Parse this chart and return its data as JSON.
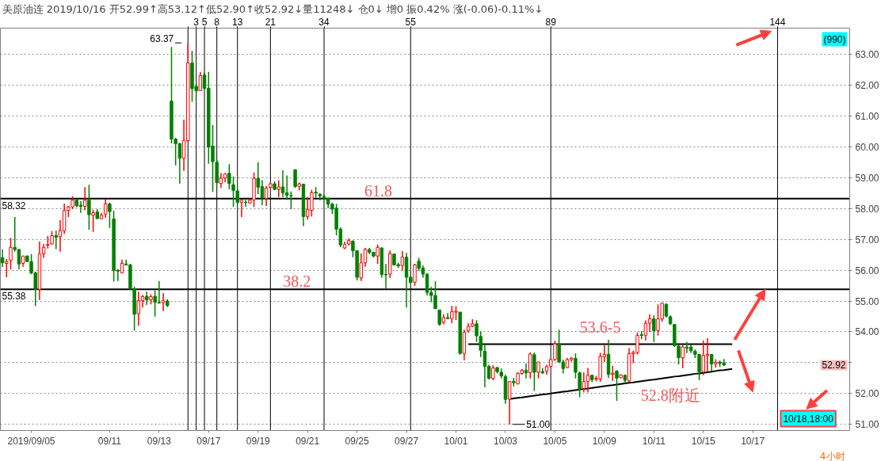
{
  "chart_data": {
    "type": "candlestick",
    "title": "美原油连 2019/10/16 开52.99↑高53.12↑低52.90↑收52.92↓量11248↓ 仓0↓ 增0 振0.42% 涨(-0.06)-0.11%↓",
    "categories": [
      null,
      null,
      null,
      null,
      null,
      null,
      null,
      "2019/09/05",
      null,
      null,
      null,
      null,
      null,
      null,
      null,
      null,
      null,
      null,
      null,
      null,
      null,
      null,
      null,
      null,
      null,
      null,
      "09/11",
      null,
      null,
      null,
      null,
      null,
      null,
      null,
      null,
      null,
      null,
      null,
      "09/13",
      null,
      null,
      null,
      null,
      null,
      null,
      null,
      null,
      null,
      null,
      null,
      "09/17",
      null,
      null,
      null,
      null,
      null,
      null,
      null,
      null,
      null,
      null,
      null,
      "09/19",
      null,
      null,
      null,
      null,
      null,
      null,
      null,
      null,
      null,
      null,
      null,
      "09/21",
      null,
      null,
      null,
      null,
      null,
      null,
      null,
      null,
      null,
      null,
      null,
      "09/25",
      null,
      null,
      null,
      null,
      null,
      null,
      null,
      null,
      null,
      null,
      null,
      "09/27",
      null,
      null,
      null,
      null,
      null,
      null,
      null,
      null,
      null,
      null,
      null,
      "10/01",
      null,
      null,
      null,
      null,
      null,
      null,
      null,
      null,
      null,
      null,
      null,
      "10/03",
      null,
      null,
      null,
      null,
      null,
      null,
      null,
      null,
      null,
      null,
      null,
      "10/05",
      null,
      null,
      null,
      null,
      null,
      null,
      null,
      null,
      null,
      null,
      null,
      "10/09",
      null,
      null,
      null,
      null,
      null,
      null,
      null,
      null,
      null,
      null,
      null,
      "10/11",
      null,
      null,
      null,
      null,
      null,
      null,
      null,
      null,
      null,
      null,
      null,
      "10/15",
      null,
      null,
      null,
      null,
      null,
      null,
      null,
      null,
      null,
      null,
      null,
      "10/17",
      null,
      null,
      null,
      null,
      null,
      null,
      null,
      null,
      null,
      null,
      null,
      null,
      null,
      null,
      null,
      null,
      null,
      null,
      null,
      null,
      null,
      null,
      null
    ],
    "ohlc": [
      [
        56.4,
        56.67,
        56.1,
        56.24
      ],
      [
        56.22,
        56.37,
        55.77,
        56.28
      ],
      [
        56.32,
        57.05,
        56.02,
        56.74
      ],
      [
        56.74,
        57.72,
        56.6,
        56.67
      ],
      [
        56.67,
        56.68,
        56.03,
        56.2
      ],
      [
        56.22,
        56.46,
        56.11,
        56.46
      ],
      [
        56.46,
        56.48,
        56.26,
        56.28
      ],
      [
        56.28,
        56.52,
        55.87,
        55.91
      ],
      [
        55.91,
        55.95,
        54.84,
        55.38
      ],
      [
        55.38,
        56.93,
        55.03,
        56.52
      ],
      [
        56.54,
        56.85,
        56.4,
        56.74
      ],
      [
        56.81,
        57.11,
        56.7,
        56.83
      ],
      [
        56.85,
        57.27,
        56.83,
        57.12
      ],
      [
        57.12,
        57.28,
        56.68,
        57.07
      ],
      [
        57.09,
        57.62,
        56.6,
        57.28
      ],
      [
        57.28,
        58.16,
        57.17,
        57.93
      ],
      [
        57.94,
        58.08,
        57.72,
        58.05
      ],
      [
        58.05,
        58.39,
        57.98,
        58.27
      ],
      [
        58.27,
        58.31,
        58.04,
        58.09
      ],
      [
        58.11,
        58.24,
        57.86,
        58.07
      ],
      [
        58.07,
        58.69,
        57.94,
        58.27
      ],
      [
        58.27,
        58.77,
        57.31,
        57.8
      ],
      [
        57.78,
        57.96,
        57.24,
        57.86
      ],
      [
        57.89,
        57.98,
        57.67,
        57.67
      ],
      [
        57.67,
        57.86,
        57.66,
        57.78
      ],
      [
        57.82,
        58.31,
        57.7,
        58.15
      ],
      [
        58.15,
        58.19,
        57.37,
        57.9
      ],
      [
        57.66,
        57.93,
        55.63,
        55.99
      ],
      [
        56.0,
        56.03,
        55.65,
        55.97
      ],
      [
        55.91,
        56.34,
        55.89,
        56.22
      ],
      [
        56.2,
        56.34,
        56.15,
        56.17
      ],
      [
        56.17,
        56.21,
        55.38,
        55.4
      ],
      [
        55.38,
        55.46,
        54.04,
        54.57
      ],
      [
        54.59,
        55.3,
        54.2,
        55.01
      ],
      [
        55.01,
        55.2,
        54.79,
        55.14
      ],
      [
        55.15,
        55.3,
        54.87,
        55.04
      ],
      [
        55.04,
        55.22,
        54.89,
        55.14
      ],
      [
        55.15,
        55.34,
        54.49,
        54.96
      ],
      [
        54.95,
        55.65,
        54.92,
        54.93
      ],
      [
        54.95,
        55.26,
        54.67,
        55.01
      ],
      [
        55.0,
        55.06,
        54.81,
        54.85
      ],
      [
        61.48,
        63.24,
        60.11,
        60.25
      ],
      [
        60.25,
        60.29,
        59.4,
        60.1
      ],
      [
        60.1,
        60.13,
        58.81,
        59.63
      ],
      [
        59.63,
        60.88,
        59.22,
        60.2
      ],
      [
        60.2,
        63.37,
        60.15,
        62.72
      ],
      [
        62.72,
        63.11,
        61.46,
        61.89
      ],
      [
        61.96,
        62.05,
        61.75,
        61.82
      ],
      [
        61.82,
        62.43,
        61.82,
        62.31
      ],
      [
        62.33,
        62.42,
        61.85,
        61.9
      ],
      [
        61.9,
        62.43,
        59.45,
        59.99
      ],
      [
        60.02,
        60.71,
        58.54,
        59.52
      ],
      [
        59.5,
        59.58,
        58.78,
        58.84
      ],
      [
        58.81,
        59.15,
        58.67,
        58.98
      ],
      [
        58.99,
        59.15,
        58.85,
        59.12
      ],
      [
        59.14,
        59.44,
        58.63,
        58.81
      ],
      [
        58.77,
        59.04,
        58.05,
        58.59
      ],
      [
        58.57,
        58.62,
        58.15,
        58.2
      ],
      [
        58.2,
        58.27,
        57.72,
        58.27
      ],
      [
        58.2,
        58.28,
        58.06,
        58.19
      ],
      [
        58.18,
        58.33,
        58.16,
        58.27
      ],
      [
        58.28,
        59.17,
        58.05,
        58.98
      ],
      [
        58.98,
        59.5,
        58.47,
        58.69
      ],
      [
        58.71,
        58.92,
        58.11,
        58.35
      ],
      [
        58.33,
        58.73,
        58.08,
        58.66
      ],
      [
        58.69,
        58.84,
        58.64,
        58.8
      ],
      [
        58.8,
        58.88,
        58.59,
        58.62
      ],
      [
        58.62,
        58.92,
        58.37,
        58.7
      ],
      [
        58.7,
        59.24,
        58.37,
        58.51
      ],
      [
        58.51,
        59.07,
        58.28,
        58.43
      ],
      [
        58.42,
        58.55,
        57.98,
        58.41
      ],
      [
        59.26,
        59.26,
        58.67,
        58.71
      ],
      [
        58.72,
        58.84,
        58.59,
        58.8
      ],
      [
        58.79,
        58.8,
        57.43,
        57.74
      ],
      [
        57.74,
        58.37,
        57.64,
        57.96
      ],
      [
        57.94,
        58.61,
        57.74,
        58.51
      ],
      [
        58.53,
        58.69,
        58.35,
        58.5
      ],
      [
        58.46,
        58.5,
        58.27,
        58.41
      ],
      [
        58.39,
        58.44,
        58.3,
        58.33
      ],
      [
        58.33,
        58.35,
        58.01,
        58.14
      ],
      [
        58.14,
        58.19,
        57.82,
        57.98
      ],
      [
        58.01,
        58.15,
        57.13,
        57.33
      ],
      [
        57.33,
        57.39,
        56.74,
        56.82
      ],
      [
        56.72,
        56.93,
        56.68,
        56.83
      ],
      [
        56.85,
        57.03,
        56.8,
        56.96
      ],
      [
        56.94,
        56.97,
        56.42,
        56.63
      ],
      [
        56.63,
        56.64,
        55.67,
        55.77
      ],
      [
        55.75,
        56.54,
        55.65,
        56.24
      ],
      [
        56.24,
        56.72,
        56.11,
        56.67
      ],
      [
        56.67,
        56.72,
        56.52,
        56.58
      ],
      [
        56.58,
        56.6,
        56.41,
        56.46
      ],
      [
        56.46,
        56.83,
        56.2,
        56.74
      ],
      [
        56.72,
        56.74,
        55.76,
        55.86
      ],
      [
        55.86,
        56.2,
        55.42,
        55.85
      ],
      [
        55.87,
        56.64,
        55.75,
        56.54
      ],
      [
        56.52,
        56.54,
        56.15,
        56.17
      ],
      [
        56.18,
        56.24,
        56.07,
        56.14
      ],
      [
        56.15,
        56.62,
        55.99,
        56.42
      ],
      [
        56.42,
        56.56,
        54.79,
        55.77
      ],
      [
        55.77,
        55.82,
        55.55,
        55.6
      ],
      [
        55.61,
        56.21,
        55.49,
        56.17
      ],
      [
        56.29,
        56.4,
        55.97,
        56.06
      ],
      [
        56.07,
        56.15,
        55.76,
        55.87
      ],
      [
        55.87,
        55.89,
        55.18,
        55.28
      ],
      [
        55.28,
        55.46,
        54.96,
        55.18
      ],
      [
        55.18,
        55.64,
        54.75,
        54.75
      ],
      [
        54.71,
        54.71,
        54.2,
        54.24
      ],
      [
        54.31,
        54.57,
        54.24,
        54.46
      ],
      [
        54.46,
        54.61,
        54.41,
        54.43
      ],
      [
        54.43,
        54.84,
        54.28,
        54.65
      ],
      [
        54.64,
        54.83,
        54.38,
        54.67
      ],
      [
        54.64,
        54.64,
        53.26,
        53.3
      ],
      [
        53.3,
        54.07,
        53.08,
        53.99
      ],
      [
        54.03,
        54.28,
        53.98,
        54.18
      ],
      [
        54.18,
        54.41,
        54.15,
        54.26
      ],
      [
        54.26,
        54.38,
        53.67,
        53.87
      ],
      [
        53.85,
        54.01,
        53.18,
        53.4
      ],
      [
        53.37,
        53.57,
        52.2,
        52.88
      ],
      [
        52.88,
        52.93,
        52.46,
        52.49
      ],
      [
        52.49,
        52.92,
        52.43,
        52.83
      ],
      [
        52.84,
        52.87,
        52.65,
        52.71
      ],
      [
        52.69,
        52.81,
        52.49,
        52.57
      ],
      [
        52.55,
        52.61,
        51.67,
        51.81
      ],
      [
        51.82,
        52.39,
        51.0,
        52.39
      ],
      [
        52.39,
        52.51,
        52.23,
        52.35
      ],
      [
        52.31,
        52.69,
        52.3,
        52.65
      ],
      [
        52.65,
        52.79,
        52.61,
        52.75
      ],
      [
        52.75,
        52.98,
        52.49,
        52.67
      ],
      [
        52.67,
        53.33,
        52.49,
        53.28
      ],
      [
        53.26,
        53.33,
        52.08,
        52.69
      ],
      [
        52.69,
        53.02,
        52.49,
        53.02
      ],
      [
        52.71,
        52.83,
        52.63,
        52.67
      ],
      [
        52.73,
        52.93,
        52.61,
        52.87
      ],
      [
        52.88,
        53.14,
        52.84,
        53.1
      ],
      [
        53.1,
        53.71,
        53.06,
        53.61
      ],
      [
        53.61,
        54.07,
        53.0,
        53.02
      ],
      [
        53.02,
        53.1,
        52.65,
        52.81
      ],
      [
        52.84,
        53.16,
        52.82,
        53.1
      ],
      [
        53.1,
        53.18,
        53.04,
        53.15
      ],
      [
        53.14,
        53.3,
        52.49,
        52.69
      ],
      [
        52.67,
        52.71,
        51.88,
        52.14
      ],
      [
        52.16,
        52.69,
        52.04,
        52.39
      ],
      [
        52.39,
        52.83,
        52.04,
        52.59
      ],
      [
        52.59,
        52.61,
        52.37,
        52.45
      ],
      [
        52.47,
        52.57,
        52.39,
        52.49
      ],
      [
        52.47,
        53.32,
        52.38,
        53.2
      ],
      [
        53.19,
        53.57,
        53.02,
        53.27
      ],
      [
        53.27,
        53.74,
        52.5,
        52.62
      ],
      [
        52.62,
        52.9,
        52.41,
        52.66
      ],
      [
        52.72,
        52.76,
        51.76,
        52.5
      ],
      [
        52.51,
        52.62,
        52.5,
        52.6
      ],
      [
        52.59,
        52.62,
        52.33,
        52.43
      ],
      [
        52.41,
        53.47,
        52.37,
        53.29
      ],
      [
        53.29,
        53.39,
        52.98,
        53.33
      ],
      [
        53.33,
        53.98,
        53.27,
        53.88
      ],
      [
        53.91,
        54.02,
        53.76,
        53.88
      ],
      [
        53.89,
        54.37,
        53.72,
        54.27
      ],
      [
        54.28,
        54.57,
        54.0,
        54.42
      ],
      [
        54.42,
        54.54,
        53.67,
        54.04
      ],
      [
        54.04,
        54.89,
        53.88,
        54.42
      ],
      [
        54.42,
        54.93,
        54.33,
        54.93
      ],
      [
        54.89,
        54.93,
        54.47,
        54.51
      ],
      [
        54.49,
        54.53,
        54.22,
        54.26
      ],
      [
        54.24,
        54.24,
        53.51,
        53.55
      ],
      [
        53.54,
        53.57,
        52.94,
        53.16
      ],
      [
        53.16,
        53.57,
        52.82,
        53.51
      ],
      [
        53.51,
        53.67,
        53.31,
        53.47
      ],
      [
        53.51,
        53.59,
        53.31,
        53.39
      ],
      [
        53.37,
        53.43,
        53.15,
        53.27
      ],
      [
        53.27,
        53.28,
        52.43,
        52.7
      ],
      [
        52.7,
        53.72,
        52.59,
        53.24
      ],
      [
        53.23,
        53.8,
        52.7,
        53.27
      ],
      [
        53.27,
        53.27,
        52.74,
        52.96
      ],
      [
        52.96,
        53.11,
        52.84,
        53.01
      ],
      [
        53.02,
        53.07,
        52.86,
        52.98
      ],
      [
        52.99,
        53.12,
        52.9,
        52.92
      ],
      null,
      null,
      null,
      null,
      null,
      null,
      null,
      null,
      null,
      null,
      null,
      null,
      null,
      null,
      null,
      null,
      null,
      null,
      null,
      null,
      null,
      null,
      null,
      null,
      null,
      null,
      null,
      null,
      null,
      null
    ],
    "colors": [
      "#008000",
      "#ff0000",
      "#ff0000",
      "#008000",
      "#008000",
      "#ff0000",
      "#008000",
      "#008000",
      "#008000",
      "#ff0000",
      "#ff0000",
      "#ff0000",
      "#ff0000",
      "#008000",
      "#ff0000",
      "#ff0000",
      "#ff0000",
      "#ff0000",
      "#008000",
      "#008000",
      "#ff0000",
      "#008000",
      "#ff0000",
      "#008000",
      "#ff0000",
      "#ff0000",
      "#008000",
      "#008000",
      "#008000",
      "#ff0000",
      "#008000",
      "#008000",
      "#008000",
      "#ff0000",
      "#ff0000",
      "#008000",
      "#ff0000",
      "#008000",
      "#008000",
      "#ff0000",
      "#008000",
      "#008000",
      "#008000",
      "#008000",
      "#ff0000",
      "#ff0000",
      "#008000",
      "#008000",
      "#ff0000",
      "#008000",
      "#008000",
      "#008000",
      "#008000",
      "#ff0000",
      "#ff0000",
      "#008000",
      "#008000",
      "#008000",
      "#ff0000",
      "#008000",
      "#ff0000",
      "#ff0000",
      "#008000",
      "#008000",
      "#ff0000",
      "#ff0000",
      "#008000",
      "#ff0000",
      "#008000",
      "#008000",
      "#008000",
      "#008000",
      "#ff0000",
      "#008000",
      "#ff0000",
      "#ff0000",
      "#008000",
      "#008000",
      "#008000",
      "#008000",
      "#008000",
      "#008000",
      "#008000",
      "#ff0000",
      "#ff0000",
      "#008000",
      "#008000",
      "#ff0000",
      "#ff0000",
      "#008000",
      "#008000",
      "#ff0000",
      "#008000",
      "#008000",
      "#ff0000",
      "#008000",
      "#008000",
      "#ff0000",
      "#008000",
      "#008000",
      "#ff0000",
      "#008000",
      "#008000",
      "#008000",
      "#008000",
      "#008000",
      "#008000",
      "#ff0000",
      "#008000",
      "#ff0000",
      "#ff0000",
      "#008000",
      "#ff0000",
      "#ff0000",
      "#ff0000",
      "#008000",
      "#008000",
      "#008000",
      "#008000",
      "#ff0000",
      "#008000",
      "#008000",
      "#008000",
      "#ff0000",
      "#008000",
      "#ff0000",
      "#ff0000",
      "#008000",
      "#ff0000",
      "#008000",
      "#ff0000",
      "#008000",
      "#ff0000",
      "#ff0000",
      "#ff0000",
      "#008000",
      "#008000",
      "#ff0000",
      "#ff0000",
      "#008000",
      "#008000",
      "#ff0000",
      "#ff0000",
      "#008000",
      "#ff0000",
      "#ff0000",
      "#ff0000",
      "#008000",
      "#ff0000",
      "#008000",
      "#ff0000",
      "#008000",
      "#ff0000",
      "#ff0000",
      "#ff0000",
      "#008000",
      "#ff0000",
      "#ff0000",
      "#008000",
      "#ff0000",
      "#ff0000",
      "#008000",
      "#008000",
      "#008000",
      "#008000",
      "#ff0000",
      "#008000",
      "#008000",
      "#008000",
      "#008000",
      "#ff0000",
      "#ff0000",
      "#008000",
      "#ff0000",
      "#008000",
      "#008000",
      null,
      null,
      null,
      null,
      null,
      null,
      null,
      null,
      null,
      null,
      null,
      null,
      null,
      null,
      null,
      null,
      null,
      null,
      null,
      null,
      null,
      null,
      null,
      null,
      null,
      null,
      null,
      null,
      null,
      null
    ],
    "x2lim": [
      -44.5,
      161.5
    ],
    "x2ticks": [
      {
        "value": 1,
        "label": null
      },
      3,
      5,
      8,
      13,
      21,
      34,
      55,
      89,
      144
    ],
    "ylim": [
      50.8,
      63.85
    ],
    "yticks": [
      {
        "value": 51,
        "label": "51.00"
      },
      {
        "value": 52,
        "label": "52.00"
      },
      {
        "value": 53,
        "label": null
      },
      {
        "value": 54,
        "label": "54.00"
      },
      {
        "value": 55,
        "label": "55.00"
      },
      {
        "value": 56,
        "label": "56.00"
      },
      {
        "value": 57,
        "label": "57.00"
      },
      {
        "value": 58,
        "label": "58.00"
      },
      {
        "value": 59,
        "label": "59.00"
      },
      {
        "value": 60,
        "label": "60.00"
      },
      {
        "value": 61,
        "label": "61.00"
      },
      {
        "value": 62,
        "label": "62.00"
      },
      {
        "value": 63,
        "label": "63.00"
      }
    ],
    "grid": "y",
    "ref_lines": [
      {
        "axis": "y",
        "value": 58.32,
        "label": "58.32",
        "color": "#000000"
      },
      {
        "axis": "y",
        "value": 55.38,
        "label": "55.38",
        "color": "#000000"
      },
      {
        "axis": "x2",
        "value": 1,
        "color": "#000000"
      },
      {
        "axis": "x2",
        "value": 3,
        "color": "#000000"
      },
      {
        "axis": "x2",
        "value": 5,
        "color": "#000000"
      },
      {
        "axis": "x2",
        "value": 8,
        "color": "#000000"
      },
      {
        "axis": "x2",
        "value": 13,
        "color": "#000000"
      },
      {
        "axis": "x2",
        "value": 21,
        "color": "#000000"
      },
      {
        "axis": "x2",
        "value": 34,
        "color": "#000000"
      },
      {
        "axis": "x2",
        "value": 55,
        "color": "#000000"
      },
      {
        "axis": "x2",
        "value": 89,
        "color": "#000000"
      },
      {
        "axis": "x2",
        "value": 144,
        "color": "#000000"
      }
    ],
    "series": [
      {
        "type": "line",
        "color": "#000000",
        "values": [
          null,
          null,
          null,
          null,
          null,
          null,
          null,
          null,
          null,
          null,
          null,
          null,
          null,
          null,
          null,
          null,
          null,
          null,
          null,
          null,
          null,
          null,
          null,
          null,
          null,
          null,
          null,
          null,
          null,
          null,
          null,
          null,
          null,
          null,
          null,
          null,
          null,
          null,
          null,
          null,
          null,
          null,
          null,
          null,
          null,
          null,
          null,
          null,
          null,
          null,
          null,
          null,
          null,
          null,
          null,
          null,
          null,
          null,
          null,
          null,
          null,
          null,
          null,
          null,
          null,
          null,
          null,
          null,
          null,
          null,
          null,
          null,
          null,
          null,
          null,
          null,
          null,
          null,
          null,
          null,
          null,
          null,
          null,
          null,
          null,
          null,
          null,
          null,
          null,
          null,
          null,
          null,
          null,
          null,
          null,
          null,
          null,
          null,
          null,
          null,
          null,
          null,
          null,
          null,
          null,
          null,
          null,
          null,
          null,
          null,
          null,
          null,
          null,
          53.6,
          53.6,
          53.6,
          53.6,
          53.6,
          53.6,
          53.6,
          53.6,
          53.6,
          53.6,
          53.6,
          53.6,
          53.6,
          53.6,
          53.6,
          53.6,
          53.6,
          53.6,
          53.6,
          53.6,
          53.6,
          53.6,
          53.6,
          53.6,
          53.6,
          53.6,
          53.6,
          53.6,
          53.6,
          53.6,
          53.6,
          53.6,
          53.6,
          53.6,
          53.6,
          53.6,
          53.6,
          53.6,
          53.6,
          53.6,
          53.6,
          53.6,
          53.6,
          53.6,
          53.6,
          53.6,
          53.6,
          53.6,
          53.6,
          53.6,
          53.6,
          53.6,
          53.6,
          53.6,
          53.6,
          53.6,
          53.6,
          53.6,
          53.6,
          53.6,
          53.6,
          53.6,
          53.6,
          53.6,
          53.6,
          null,
          null,
          null,
          null,
          null,
          null,
          null,
          null,
          null,
          null,
          null,
          null,
          null,
          null,
          null,
          null,
          null,
          null,
          null,
          null,
          null,
          null,
          null,
          null,
          null,
          null,
          null,
          null
        ]
      },
      {
        "type": "line",
        "color": "#000000",
        "values": [
          null,
          null,
          null,
          null,
          null,
          null,
          null,
          null,
          null,
          null,
          null,
          null,
          null,
          null,
          null,
          null,
          null,
          null,
          null,
          null,
          null,
          null,
          null,
          null,
          null,
          null,
          null,
          null,
          null,
          null,
          null,
          null,
          null,
          null,
          null,
          null,
          null,
          null,
          null,
          null,
          null,
          null,
          null,
          null,
          null,
          null,
          null,
          null,
          null,
          null,
          null,
          null,
          null,
          null,
          null,
          null,
          null,
          null,
          null,
          null,
          null,
          null,
          null,
          null,
          null,
          null,
          null,
          null,
          null,
          null,
          null,
          null,
          null,
          null,
          null,
          null,
          null,
          null,
          null,
          null,
          null,
          null,
          null,
          null,
          null,
          null,
          null,
          null,
          null,
          null,
          null,
          null,
          null,
          null,
          null,
          null,
          null,
          null,
          null,
          null,
          null,
          null,
          null,
          null,
          null,
          null,
          null,
          null,
          null,
          null,
          null,
          null,
          null,
          null,
          null,
          null,
          null,
          null,
          null,
          null,
          null,
          null,
          null,
          51.82,
          51.84,
          51.86,
          51.87,
          51.89,
          51.91,
          51.93,
          51.95,
          51.97,
          51.98,
          52.0,
          52.02,
          52.04,
          52.06,
          52.07,
          52.09,
          52.11,
          52.13,
          52.15,
          52.16,
          52.18,
          52.2,
          52.22,
          52.24,
          52.26,
          52.27,
          52.29,
          52.31,
          52.33,
          52.35,
          52.36,
          52.38,
          52.4,
          52.42,
          52.44,
          52.45,
          52.47,
          52.49,
          52.51,
          52.53,
          52.55,
          52.56,
          52.58,
          52.6,
          52.62,
          52.64,
          52.65,
          52.67,
          52.69,
          52.71,
          52.73,
          52.75,
          52.76,
          52.78,
          52.8,
          null,
          null,
          null,
          null,
          null,
          null,
          null,
          null,
          null,
          null,
          null,
          null,
          null,
          null,
          null,
          null,
          null,
          null,
          null,
          null,
          null,
          null,
          null,
          null,
          null,
          null,
          null,
          null
        ]
      }
    ],
    "annotations": [
      {
        "text": "61.8",
        "y": 58.32
      },
      {
        "text": "38.2",
        "y": 55.38
      },
      {
        "text": "53.6-5",
        "y": 53.6
      },
      "52.8附近",
      "63.37",
      "51.00",
      {
        "text": "52.92",
        "y": 52.92
      },
      "10/18,18:00",
      "(990)",
      "4小时"
    ]
  }
}
